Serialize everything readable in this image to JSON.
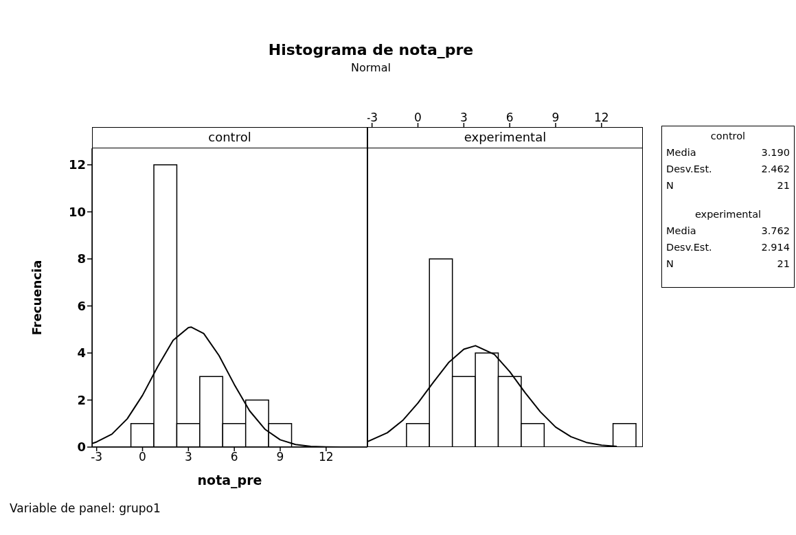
{
  "chart_data": [
    {
      "type": "other",
      "title": "Histograma de nota_pre",
      "subtitle": "Normal",
      "annotations": [
        "Variable de panel: grupo1"
      ]
    },
    {
      "type": "histogram",
      "title": "control",
      "xlabel": "nota_pre",
      "ylabel": "Frecuencia",
      "xlim": [
        -3.3,
        14.7
      ],
      "xticks": [
        -3,
        0,
        3,
        6,
        9,
        12
      ],
      "ylim": [
        0,
        12.7
      ],
      "yticks": [
        0,
        2,
        4,
        6,
        8,
        10,
        12
      ],
      "legend": false,
      "series": [
        {
          "type": "histogram",
          "color": "#ffffff",
          "bins": [
            -0.75,
            0.75,
            2.25,
            3.75,
            5.25,
            6.75,
            8.25,
            9.75
          ],
          "values": [
            1,
            12,
            1,
            3,
            1,
            2,
            1
          ]
        },
        {
          "type": "line",
          "color": "#000000",
          "x": [
            -3.3,
            -3,
            -2,
            -1,
            0,
            1,
            2,
            3,
            3.19,
            4,
            5,
            6,
            7,
            8,
            9,
            10,
            11,
            12,
            13
          ],
          "values": [
            0.15,
            0.22,
            0.55,
            1.2,
            2.2,
            3.43,
            4.54,
            5.08,
            5.1,
            4.83,
            3.89,
            2.66,
            1.54,
            0.76,
            0.31,
            0.11,
            0.03,
            0.01,
            0
          ]
        }
      ]
    },
    {
      "type": "histogram",
      "title": "experimental",
      "xlim": [
        -3.3,
        14.7
      ],
      "xticks": [
        -3,
        0,
        3,
        6,
        9,
        12
      ],
      "ylim": [
        0,
        12.7
      ],
      "tick_labels": "x",
      "legend": false,
      "series": [
        {
          "type": "histogram",
          "color": "#ffffff",
          "bins": [
            -0.75,
            0.75,
            2.25,
            3.75,
            5.25,
            6.75,
            8.25,
            9.75,
            11.25,
            12.75,
            14.25
          ],
          "values": [
            1,
            8,
            3,
            4,
            3,
            1,
            0,
            0,
            0,
            1
          ]
        },
        {
          "type": "line",
          "color": "#000000",
          "x": [
            -3.3,
            -2,
            -1,
            0,
            1,
            2,
            3,
            3.76,
            5,
            6,
            7,
            8,
            9,
            10,
            11,
            12,
            13
          ],
          "values": [
            0.23,
            0.61,
            1.13,
            1.87,
            2.75,
            3.59,
            4.16,
            4.31,
            3.94,
            3.21,
            2.32,
            1.5,
            0.85,
            0.44,
            0.2,
            0.08,
            0.03
          ]
        }
      ]
    },
    {
      "type": "other",
      "title": "control",
      "annotations": [
        "Media",
        "3.190",
        "Desv.Est.",
        "2.462",
        "N",
        "21"
      ]
    },
    {
      "type": "other",
      "title": "experimental",
      "annotations": [
        "Media",
        "3.762",
        "Desv.Est.",
        "2.914",
        "N",
        "21"
      ]
    }
  ]
}
